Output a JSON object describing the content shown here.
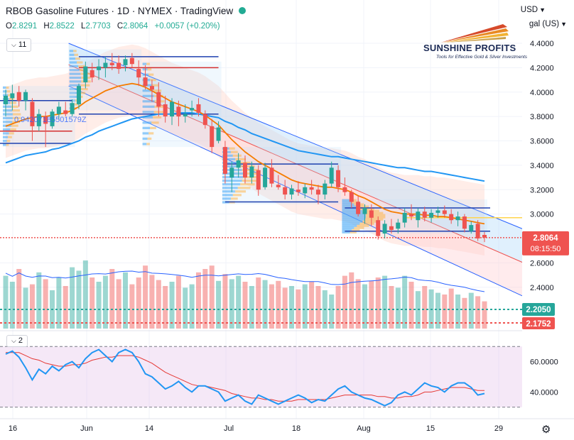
{
  "header": {
    "title": "RBOB Gasoline Futures · 1D · NYMEX · TradingView",
    "currency": "USD",
    "unit": "gal (US)",
    "open_label": "O",
    "open": "2.8291",
    "high_label": "H",
    "high": "2.8522",
    "low_label": "L",
    "low": "2.7703",
    "close_label": "C",
    "close": "2.8064",
    "change": "+0.0057 (+0.20%)",
    "indicators_count": "11",
    "pane2_count": "2"
  },
  "logo": {
    "name": "SUNSHINE PROFITS",
    "tagline": "Tools for Effective Gold & Silver Investments"
  },
  "overlay_text": "0.94207185501579Z",
  "price_labels": {
    "last": "2.8064",
    "countdown": "08:15:50",
    "level1": "2.2050",
    "level2": "2.1752"
  },
  "colors": {
    "up": "#26a69a",
    "down": "#ef5350",
    "sma_fast": "#f57c00",
    "sma_slow": "#2196f3",
    "rsi": "#2196f3",
    "rsi_ma": "#e53935"
  },
  "chart_data": [
    {
      "type": "candlestick",
      "title": "RBOB Gasoline Futures · 1D · NYMEX",
      "x_tick_labels": [
        "16",
        "Jun",
        "14",
        "Jul",
        "18",
        "Aug",
        "15",
        "29"
      ],
      "y_tick_labels": [
        "4.4000",
        "4.2000",
        "4.0000",
        "3.8000",
        "3.6000",
        "3.4000",
        "3.2000",
        "3.0000",
        "2.6000",
        "2.4000"
      ],
      "ylim": [
        2.2,
        4.45
      ],
      "candles": [
        {
          "date": "2022-05-16",
          "open": 3.9,
          "high": 4.02,
          "low": 3.8,
          "close": 3.97
        },
        {
          "date": "2022-05-17",
          "open": 3.95,
          "high": 4.06,
          "low": 3.85,
          "close": 3.99
        },
        {
          "date": "2022-05-18",
          "open": 4.0,
          "high": 4.05,
          "low": 3.88,
          "close": 3.93
        },
        {
          "date": "2022-05-19",
          "open": 3.93,
          "high": 4.02,
          "low": 3.85,
          "close": 4.0
        },
        {
          "date": "2022-05-20",
          "open": 3.92,
          "high": 3.95,
          "low": 3.6,
          "close": 3.72
        },
        {
          "date": "2022-05-23",
          "open": 3.72,
          "high": 3.86,
          "low": 3.68,
          "close": 3.82
        },
        {
          "date": "2022-05-24",
          "open": 3.8,
          "high": 3.84,
          "low": 3.55,
          "close": 3.74
        },
        {
          "date": "2022-05-25",
          "open": 3.72,
          "high": 3.86,
          "low": 3.7,
          "close": 3.84
        },
        {
          "date": "2022-05-26",
          "open": 3.82,
          "high": 3.92,
          "low": 3.78,
          "close": 3.88
        },
        {
          "date": "2022-05-27",
          "open": 3.85,
          "high": 3.92,
          "low": 3.8,
          "close": 3.82
        },
        {
          "date": "2022-05-31",
          "open": 3.82,
          "high": 3.94,
          "low": 3.8,
          "close": 3.91
        },
        {
          "date": "2022-06-01",
          "open": 3.9,
          "high": 4.07,
          "low": 3.86,
          "close": 4.05
        },
        {
          "date": "2022-06-02",
          "open": 4.08,
          "high": 4.25,
          "low": 4.03,
          "close": 4.21
        },
        {
          "date": "2022-06-03",
          "open": 4.18,
          "high": 4.24,
          "low": 4.08,
          "close": 4.12
        },
        {
          "date": "2022-06-06",
          "open": 4.18,
          "high": 4.27,
          "low": 4.1,
          "close": 4.21
        },
        {
          "date": "2022-06-07",
          "open": 4.2,
          "high": 4.29,
          "low": 4.12,
          "close": 4.24
        },
        {
          "date": "2022-06-08",
          "open": 4.24,
          "high": 4.32,
          "low": 4.18,
          "close": 4.22
        },
        {
          "date": "2022-06-09",
          "open": 4.24,
          "high": 4.3,
          "low": 4.15,
          "close": 4.19
        },
        {
          "date": "2022-06-10",
          "open": 4.22,
          "high": 4.3,
          "low": 4.17,
          "close": 4.27
        },
        {
          "date": "2022-06-13",
          "open": 4.28,
          "high": 4.32,
          "low": 4.2,
          "close": 4.23
        },
        {
          "date": "2022-06-14",
          "open": 4.19,
          "high": 4.26,
          "low": 4.05,
          "close": 4.12
        },
        {
          "date": "2022-06-15",
          "open": 4.12,
          "high": 4.22,
          "low": 4.02,
          "close": 4.05
        },
        {
          "date": "2022-06-16",
          "open": 4.05,
          "high": 4.1,
          "low": 3.92,
          "close": 4.02
        },
        {
          "date": "2022-06-17",
          "open": 4.0,
          "high": 4.08,
          "low": 3.8,
          "close": 3.88
        },
        {
          "date": "2022-06-21",
          "open": 3.9,
          "high": 3.97,
          "low": 3.75,
          "close": 3.8
        },
        {
          "date": "2022-06-22",
          "open": 3.8,
          "high": 3.95,
          "low": 3.73,
          "close": 3.92
        },
        {
          "date": "2022-06-23",
          "open": 3.88,
          "high": 3.93,
          "low": 3.72,
          "close": 3.8
        },
        {
          "date": "2022-06-24",
          "open": 3.8,
          "high": 3.9,
          "low": 3.75,
          "close": 3.82
        },
        {
          "date": "2022-06-27",
          "open": 3.85,
          "high": 3.93,
          "low": 3.8,
          "close": 3.87
        },
        {
          "date": "2022-06-28",
          "open": 3.9,
          "high": 3.95,
          "low": 3.8,
          "close": 3.83
        },
        {
          "date": "2022-06-29",
          "open": 3.82,
          "high": 3.85,
          "low": 3.7,
          "close": 3.73
        },
        {
          "date": "2022-06-30",
          "open": 3.72,
          "high": 3.78,
          "low": 3.5,
          "close": 3.55
        },
        {
          "date": "2022-07-01",
          "open": 3.6,
          "high": 3.76,
          "low": 3.58,
          "close": 3.71
        },
        {
          "date": "2022-07-05",
          "open": 3.55,
          "high": 3.6,
          "low": 3.25,
          "close": 3.33
        },
        {
          "date": "2022-07-06",
          "open": 3.3,
          "high": 3.43,
          "low": 3.18,
          "close": 3.38
        },
        {
          "date": "2022-07-07",
          "open": 3.38,
          "high": 3.5,
          "low": 3.3,
          "close": 3.44
        },
        {
          "date": "2022-07-08",
          "open": 3.42,
          "high": 3.48,
          "low": 3.25,
          "close": 3.3
        },
        {
          "date": "2022-07-11",
          "open": 3.3,
          "high": 3.43,
          "low": 3.25,
          "close": 3.39
        },
        {
          "date": "2022-07-12",
          "open": 3.36,
          "high": 3.4,
          "low": 3.15,
          "close": 3.2
        },
        {
          "date": "2022-07-13",
          "open": 3.22,
          "high": 3.42,
          "low": 3.2,
          "close": 3.38
        },
        {
          "date": "2022-07-14",
          "open": 3.38,
          "high": 3.45,
          "low": 3.22,
          "close": 3.25
        },
        {
          "date": "2022-07-15",
          "open": 3.24,
          "high": 3.32,
          "low": 3.2,
          "close": 3.22
        },
        {
          "date": "2022-07-18",
          "open": 3.22,
          "high": 3.28,
          "low": 3.12,
          "close": 3.16
        },
        {
          "date": "2022-07-19",
          "open": 3.16,
          "high": 3.24,
          "low": 3.12,
          "close": 3.21
        },
        {
          "date": "2022-07-20",
          "open": 3.2,
          "high": 3.27,
          "low": 3.15,
          "close": 3.18
        },
        {
          "date": "2022-07-21",
          "open": 3.17,
          "high": 3.25,
          "low": 3.13,
          "close": 3.22
        },
        {
          "date": "2022-07-22",
          "open": 3.22,
          "high": 3.28,
          "low": 3.16,
          "close": 3.2
        },
        {
          "date": "2022-07-25",
          "open": 3.2,
          "high": 3.24,
          "low": 3.08,
          "close": 3.16
        },
        {
          "date": "2022-07-26",
          "open": 3.16,
          "high": 3.28,
          "low": 3.12,
          "close": 3.25
        },
        {
          "date": "2022-07-27",
          "open": 3.25,
          "high": 3.43,
          "low": 3.22,
          "close": 3.38
        },
        {
          "date": "2022-07-28",
          "open": 3.36,
          "high": 3.4,
          "low": 3.18,
          "close": 3.22
        },
        {
          "date": "2022-07-29",
          "open": 3.22,
          "high": 3.3,
          "low": 3.15,
          "close": 3.18
        },
        {
          "date": "2022-08-01",
          "open": 3.18,
          "high": 3.2,
          "low": 3.05,
          "close": 3.1
        },
        {
          "date": "2022-08-02",
          "open": 3.1,
          "high": 3.15,
          "low": 2.98,
          "close": 3.0
        },
        {
          "date": "2022-08-03",
          "open": 3.0,
          "high": 3.08,
          "low": 2.92,
          "close": 3.05
        },
        {
          "date": "2022-08-04",
          "open": 3.03,
          "high": 3.08,
          "low": 2.9,
          "close": 2.97
        },
        {
          "date": "2022-08-05",
          "open": 2.95,
          "high": 2.98,
          "low": 2.79,
          "close": 2.82
        },
        {
          "date": "2022-08-08",
          "open": 2.84,
          "high": 2.95,
          "low": 2.8,
          "close": 2.92
        },
        {
          "date": "2022-08-09",
          "open": 2.9,
          "high": 2.96,
          "low": 2.84,
          "close": 2.87
        },
        {
          "date": "2022-08-10",
          "open": 2.88,
          "high": 2.96,
          "low": 2.84,
          "close": 2.93
        },
        {
          "date": "2022-08-11",
          "open": 2.93,
          "high": 3.05,
          "low": 2.89,
          "close": 3.01
        },
        {
          "date": "2022-08-12",
          "open": 3.0,
          "high": 3.08,
          "low": 2.95,
          "close": 2.98
        },
        {
          "date": "2022-08-15",
          "open": 2.95,
          "high": 3.05,
          "low": 2.89,
          "close": 3.02
        },
        {
          "date": "2022-08-16",
          "open": 3.02,
          "high": 3.06,
          "low": 2.94,
          "close": 2.97
        },
        {
          "date": "2022-08-17",
          "open": 2.97,
          "high": 3.04,
          "low": 2.93,
          "close": 3.01
        },
        {
          "date": "2022-08-18",
          "open": 3.01,
          "high": 3.06,
          "low": 2.97,
          "close": 3.03
        },
        {
          "date": "2022-08-19",
          "open": 3.03,
          "high": 3.07,
          "low": 2.97,
          "close": 3.0
        },
        {
          "date": "2022-08-22",
          "open": 3.0,
          "high": 3.04,
          "low": 2.92,
          "close": 2.95
        },
        {
          "date": "2022-08-23",
          "open": 2.95,
          "high": 3.02,
          "low": 2.9,
          "close": 2.98
        },
        {
          "date": "2022-08-24",
          "open": 2.98,
          "high": 3.0,
          "low": 2.85,
          "close": 2.88
        },
        {
          "date": "2022-08-25",
          "open": 2.86,
          "high": 2.94,
          "low": 2.84,
          "close": 2.91
        },
        {
          "date": "2022-08-26",
          "open": 2.92,
          "high": 2.95,
          "low": 2.78,
          "close": 2.8
        },
        {
          "date": "2022-08-29",
          "open": 2.8291,
          "high": 2.8522,
          "low": 2.7703,
          "close": 2.8064
        }
      ],
      "sma_fast": [
        3.72,
        3.74,
        3.76,
        3.78,
        3.79,
        3.8,
        3.8,
        3.81,
        3.82,
        3.83,
        3.85,
        3.88,
        3.92,
        3.95,
        3.98,
        4.01,
        4.03,
        4.05,
        4.06,
        4.07,
        4.06,
        4.04,
        4.01,
        3.98,
        3.95,
        3.92,
        3.9,
        3.88,
        3.86,
        3.84,
        3.81,
        3.77,
        3.73,
        3.67,
        3.61,
        3.56,
        3.51,
        3.47,
        3.43,
        3.4,
        3.37,
        3.34,
        3.31,
        3.28,
        3.26,
        3.25,
        3.24,
        3.23,
        3.22,
        3.22,
        3.21,
        3.2,
        3.18,
        3.15,
        3.13,
        3.1,
        3.07,
        3.04,
        3.02,
        3.01,
        3.0,
        3.0,
        3.0,
        2.99,
        2.99,
        2.98,
        2.98,
        2.97,
        2.96,
        2.95,
        2.94,
        2.93,
        2.92
      ],
      "sma_slow": [
        3.42,
        3.44,
        3.46,
        3.48,
        3.49,
        3.5,
        3.51,
        3.53,
        3.54,
        3.56,
        3.58,
        3.6,
        3.63,
        3.65,
        3.68,
        3.7,
        3.72,
        3.74,
        3.76,
        3.78,
        3.79,
        3.8,
        3.81,
        3.82,
        3.82,
        3.82,
        3.83,
        3.83,
        3.83,
        3.82,
        3.81,
        3.8,
        3.79,
        3.76,
        3.74,
        3.71,
        3.69,
        3.66,
        3.64,
        3.62,
        3.6,
        3.58,
        3.56,
        3.54,
        3.52,
        3.51,
        3.5,
        3.49,
        3.48,
        3.47,
        3.47,
        3.46,
        3.45,
        3.44,
        3.43,
        3.42,
        3.41,
        3.4,
        3.39,
        3.38,
        3.38,
        3.37,
        3.36,
        3.35,
        3.35,
        3.34,
        3.33,
        3.32,
        3.31,
        3.3,
        3.29,
        3.28,
        3.27
      ],
      "volume_relative": [
        0.62,
        0.55,
        0.7,
        0.48,
        0.52,
        0.66,
        0.58,
        0.45,
        0.6,
        0.5,
        0.72,
        0.68,
        0.8,
        0.6,
        0.55,
        0.62,
        0.7,
        0.58,
        0.66,
        0.52,
        0.6,
        0.74,
        0.63,
        0.57,
        0.5,
        0.55,
        0.62,
        0.48,
        0.52,
        0.66,
        0.7,
        0.74,
        0.56,
        0.64,
        0.58,
        0.62,
        0.55,
        0.5,
        0.6,
        0.57,
        0.52,
        0.56,
        0.48,
        0.5,
        0.46,
        0.52,
        0.55,
        0.5,
        0.45,
        0.4,
        0.5,
        0.62,
        0.66,
        0.58,
        0.52,
        0.56,
        0.6,
        0.62,
        0.5,
        0.48,
        0.62,
        0.55,
        0.44,
        0.5,
        0.46,
        0.42,
        0.4,
        0.47,
        0.4,
        0.36,
        0.42,
        0.38,
        0.32
      ],
      "horizontal_levels": [
        3.58,
        3.68,
        3.93,
        4.2,
        4.29,
        3.82,
        3.41,
        3.1,
        3.05,
        2.97,
        2.86,
        2.205,
        2.1752
      ],
      "channel": {
        "upper": [
          [
            "2022-05-31",
            4.4
          ],
          [
            "2022-08-31",
            2.88
          ]
        ],
        "lower": [
          [
            "2022-05-31",
            4.05
          ],
          [
            "2022-08-31",
            2.33
          ]
        ]
      }
    },
    {
      "type": "line",
      "title": "RSI",
      "y_tick_labels": [
        "60.0000",
        "40.0000"
      ],
      "ylim": [
        28,
        72
      ],
      "series": [
        {
          "values": [
            65,
            67,
            63,
            56,
            48,
            55,
            52,
            57,
            54,
            58,
            60,
            56,
            62,
            66,
            68,
            64,
            60,
            66,
            68,
            66,
            60,
            52,
            50,
            46,
            42,
            44,
            47,
            43,
            40,
            44,
            44,
            42,
            40,
            34,
            36,
            38,
            34,
            32,
            38,
            36,
            34,
            32,
            34,
            36,
            38,
            36,
            33,
            35,
            34,
            38,
            42,
            44,
            40,
            38,
            36,
            35,
            33,
            31,
            33,
            38,
            40,
            38,
            42,
            46,
            44,
            43,
            40,
            44,
            46,
            46,
            43,
            38,
            39
          ]
        },
        {
          "values": [
            66,
            66,
            66,
            64,
            62,
            61,
            59,
            58,
            57,
            57,
            58,
            58,
            59,
            61,
            62,
            63,
            63,
            64,
            64,
            64,
            63,
            61,
            59,
            56,
            53,
            51,
            49,
            47,
            45,
            44,
            44,
            43,
            42,
            41,
            39,
            38,
            37,
            36,
            36,
            35,
            35,
            34,
            34,
            34,
            35,
            35,
            35,
            35,
            35,
            36,
            37,
            38,
            38,
            38,
            38,
            38,
            37,
            37,
            36,
            36,
            37,
            37,
            38,
            40,
            40,
            41,
            42,
            43,
            43,
            43,
            42,
            41,
            41
          ]
        }
      ]
    }
  ]
}
